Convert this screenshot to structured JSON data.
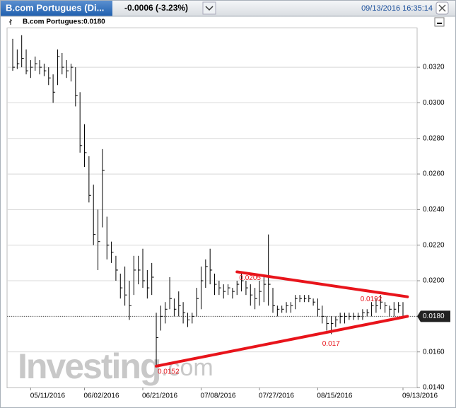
{
  "header": {
    "title": "B.com Portugues (Di...",
    "change": "-0.0006 (-3.23%)",
    "timestamp": "09/13/2016 16:35:14"
  },
  "chart_data": {
    "type": "ohlc",
    "legend": "B.com Portugues:0.0180",
    "watermark": "Investing",
    "watermark_suffix": ".com",
    "categories": [
      null,
      null,
      null,
      null,
      "05/11/2016",
      null,
      null,
      null,
      null,
      null,
      null,
      null,
      null,
      null,
      null,
      null,
      "06/02/2016",
      null,
      null,
      null,
      null,
      null,
      null,
      null,
      null,
      null,
      null,
      null,
      null,
      "06/21/2016",
      null,
      null,
      null,
      null,
      null,
      null,
      null,
      null,
      null,
      null,
      null,
      null,
      "07/08/2016",
      null,
      null,
      null,
      null,
      null,
      null,
      null,
      null,
      null,
      null,
      null,
      null,
      "07/27/2016",
      null,
      null,
      null,
      null,
      null,
      null,
      null,
      null,
      null,
      null,
      null,
      null,
      "08/15/2016",
      null,
      null,
      null,
      null,
      null,
      null,
      null,
      null,
      null,
      null,
      null,
      null,
      null,
      null,
      null,
      null,
      null,
      null,
      "09/13/2016"
    ],
    "color": "#000000",
    "high": [
      0.0336,
      0.033,
      0.0338,
      0.033,
      0.0324,
      0.0326,
      0.0324,
      0.0322,
      0.032,
      0.0316,
      0.033,
      0.0328,
      0.0324,
      0.0322,
      0.032,
      0.0306,
      0.0288,
      0.027,
      0.0254,
      0.024,
      0.0274,
      0.0236,
      0.0222,
      0.0214,
      0.0204,
      0.0208,
      0.02,
      0.0214,
      0.0214,
      0.0218,
      0.0206,
      0.021,
      0.0182,
      0.0186,
      0.0188,
      0.0202,
      0.019,
      0.0194,
      0.0188,
      0.0182,
      0.0182,
      0.0196,
      0.0208,
      0.0212,
      0.0218,
      0.0204,
      0.02,
      0.0198,
      0.0198,
      0.0196,
      0.02,
      0.0204,
      0.02,
      0.0198,
      0.0196,
      0.02,
      0.0202,
      0.0226,
      0.0196,
      0.0186,
      0.0186,
      0.0188,
      0.0188,
      0.0192,
      0.0192,
      0.0192,
      0.0192,
      0.019,
      0.019,
      0.0186,
      0.018,
      0.018,
      0.018,
      0.0182,
      0.0182,
      0.0182,
      0.0182,
      0.0182,
      0.0184,
      0.0184,
      0.0188,
      0.019,
      0.0192,
      0.0188,
      0.0186,
      0.0188,
      0.0188,
      0.0188
    ],
    "low": [
      0.0318,
      0.0319,
      0.032,
      0.0316,
      0.0314,
      0.0318,
      0.0316,
      0.0315,
      0.031,
      0.03,
      0.031,
      0.0316,
      0.0314,
      0.0312,
      0.0298,
      0.0272,
      0.0264,
      0.0244,
      0.022,
      0.0206,
      0.023,
      0.0212,
      0.021,
      0.02,
      0.019,
      0.0186,
      0.0178,
      0.0192,
      0.0198,
      0.0196,
      0.019,
      0.0192,
      0.0152,
      0.0172,
      0.0176,
      0.0184,
      0.018,
      0.018,
      0.0176,
      0.0174,
      0.0176,
      0.018,
      0.0184,
      0.0196,
      0.0198,
      0.0192,
      0.0192,
      0.019,
      0.0192,
      0.019,
      0.0192,
      0.0194,
      0.0192,
      0.0186,
      0.0184,
      0.0186,
      0.0188,
      0.0186,
      0.0182,
      0.018,
      0.0182,
      0.0182,
      0.0182,
      0.0184,
      0.0188,
      0.0188,
      0.0188,
      0.0186,
      0.018,
      0.0176,
      0.0172,
      0.017,
      0.0174,
      0.0176,
      0.0176,
      0.0178,
      0.0178,
      0.0178,
      0.0178,
      0.018,
      0.018,
      0.0182,
      0.0184,
      0.0182,
      0.018,
      0.018,
      0.0182,
      0.018
    ],
    "close": [
      0.032,
      0.0322,
      0.0325,
      0.0318,
      0.032,
      0.0322,
      0.032,
      0.0318,
      0.0314,
      0.0306,
      0.0326,
      0.032,
      0.0318,
      0.032,
      0.0304,
      0.0276,
      0.0272,
      0.0248,
      0.0226,
      0.0222,
      0.0262,
      0.022,
      0.0216,
      0.0206,
      0.0196,
      0.0192,
      0.0186,
      0.0206,
      0.0206,
      0.02,
      0.0196,
      0.0202,
      0.0168,
      0.018,
      0.0184,
      0.019,
      0.0184,
      0.0186,
      0.0182,
      0.0178,
      0.018,
      0.019,
      0.02,
      0.0208,
      0.0206,
      0.0198,
      0.0196,
      0.0194,
      0.0196,
      0.0194,
      0.0198,
      0.02,
      0.0196,
      0.0192,
      0.019,
      0.0194,
      0.0198,
      0.0198,
      0.0186,
      0.0184,
      0.0184,
      0.0186,
      0.0186,
      0.019,
      0.019,
      0.019,
      0.019,
      0.0188,
      0.0184,
      0.018,
      0.0176,
      0.0176,
      0.0178,
      0.018,
      0.018,
      0.018,
      0.018,
      0.018,
      0.0182,
      0.0182,
      0.0186,
      0.0186,
      0.0188,
      0.0186,
      0.0184,
      0.0184,
      0.0186,
      0.018
    ],
    "ylim": [
      0.014,
      0.03419
    ],
    "yticks": [
      {
        "value": 0.014,
        "label": "0.0140"
      },
      {
        "value": 0.016,
        "label": "0.0160"
      },
      {
        "value": 0.018,
        "label": "0.0180"
      },
      {
        "value": 0.02,
        "label": "0.0200"
      },
      {
        "value": 0.022,
        "label": "0.0220"
      },
      {
        "value": 0.024,
        "label": "0.0240"
      },
      {
        "value": 0.026,
        "label": "0.0260"
      },
      {
        "value": 0.028,
        "label": "0.0280"
      },
      {
        "value": 0.03,
        "label": "0.0300"
      },
      {
        "value": 0.032,
        "label": "0.0320"
      }
    ],
    "grid": true,
    "last_price": {
      "value": 0.018,
      "label": "0.0180"
    },
    "trend_lines": [
      {
        "color": "#e8141b",
        "values": [
          0.0205,
          0.0191
        ]
      },
      {
        "color": "#e8141b",
        "values": [
          0.0152,
          0.018
        ]
      }
    ],
    "annotations": [
      0.0205,
      0.0192,
      0.017,
      0.0152
    ],
    "annotation_color": "#e8141b"
  }
}
